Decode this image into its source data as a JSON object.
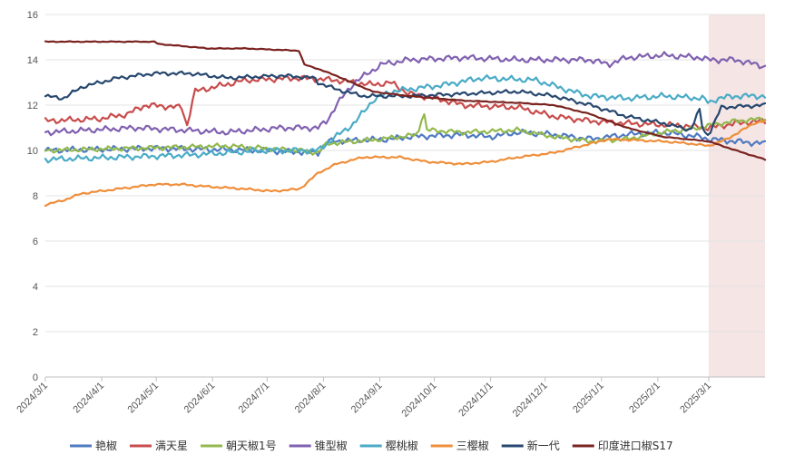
{
  "chart_data": {
    "type": "line",
    "title": "",
    "xlabel": "",
    "ylabel": "",
    "ylim": [
      0,
      16
    ],
    "y_ticks": [
      0,
      2,
      4,
      6,
      8,
      10,
      12,
      14,
      16
    ],
    "x_tick_labels": [
      "2024/3/1",
      "2024/4/1",
      "2024/5/1",
      "2024/6/1",
      "2024/7/1",
      "2024/8/1",
      "2024/9/1",
      "2024/10/1",
      "2024/11/1",
      "2024/12/1",
      "2025/1/1",
      "2025/2/1",
      "2025/3/1"
    ],
    "x_range_days": [
      0,
      396
    ],
    "highlight_region_days": [
      365,
      396
    ],
    "highlight_color": "#f2dcdb",
    "grid": "horizontal",
    "legend_position": "bottom",
    "series": [
      {
        "name": "艳椒",
        "color": "#4f7ac2",
        "noise": 0.15,
        "points": [
          [
            0,
            10.0
          ],
          [
            60,
            10.1
          ],
          [
            120,
            10.0
          ],
          [
            150,
            9.9
          ],
          [
            155,
            10.4
          ],
          [
            190,
            10.5
          ],
          [
            200,
            10.6
          ],
          [
            230,
            10.7
          ],
          [
            245,
            10.6
          ],
          [
            260,
            10.8
          ],
          [
            280,
            10.7
          ],
          [
            300,
            10.5
          ],
          [
            320,
            10.7
          ],
          [
            340,
            10.8
          ],
          [
            360,
            10.6
          ],
          [
            365,
            10.5
          ],
          [
            380,
            10.4
          ],
          [
            396,
            10.3
          ]
        ]
      },
      {
        "name": "满天星",
        "color": "#c94c4c",
        "noise": 0.15,
        "points": [
          [
            0,
            11.3
          ],
          [
            30,
            11.4
          ],
          [
            45,
            11.6
          ],
          [
            55,
            12.0
          ],
          [
            75,
            11.9
          ],
          [
            78,
            11.1
          ],
          [
            82,
            12.6
          ],
          [
            110,
            13.1
          ],
          [
            140,
            13.2
          ],
          [
            160,
            13.1
          ],
          [
            170,
            13.0
          ],
          [
            180,
            12.9
          ],
          [
            190,
            13.0
          ],
          [
            200,
            12.5
          ],
          [
            215,
            12.3
          ],
          [
            230,
            12.0
          ],
          [
            260,
            11.9
          ],
          [
            280,
            11.5
          ],
          [
            300,
            11.3
          ],
          [
            320,
            11.2
          ],
          [
            350,
            11.1
          ],
          [
            365,
            11.0
          ],
          [
            380,
            11.2
          ],
          [
            396,
            11.3
          ]
        ]
      },
      {
        "name": "朝天椒1号",
        "color": "#93b94c",
        "noise": 0.12,
        "points": [
          [
            0,
            10.0
          ],
          [
            50,
            10.1
          ],
          [
            100,
            10.2
          ],
          [
            140,
            10.0
          ],
          [
            150,
            9.9
          ],
          [
            155,
            10.3
          ],
          [
            185,
            10.5
          ],
          [
            205,
            10.7
          ],
          [
            208,
            11.8
          ],
          [
            210,
            10.9
          ],
          [
            230,
            10.8
          ],
          [
            260,
            10.9
          ],
          [
            280,
            10.6
          ],
          [
            300,
            10.4
          ],
          [
            320,
            10.5
          ],
          [
            340,
            10.8
          ],
          [
            360,
            11.0
          ],
          [
            365,
            11.1
          ],
          [
            380,
            11.3
          ],
          [
            396,
            11.4
          ]
        ]
      },
      {
        "name": "锥型椒",
        "color": "#8060b0",
        "noise": 0.15,
        "points": [
          [
            0,
            10.8
          ],
          [
            50,
            11.0
          ],
          [
            100,
            10.8
          ],
          [
            130,
            11.0
          ],
          [
            150,
            11.0
          ],
          [
            155,
            11.3
          ],
          [
            160,
            12.0
          ],
          [
            170,
            13.0
          ],
          [
            185,
            13.8
          ],
          [
            200,
            14.0
          ],
          [
            230,
            14.1
          ],
          [
            260,
            14.0
          ],
          [
            300,
            14.0
          ],
          [
            310,
            13.8
          ],
          [
            320,
            14.1
          ],
          [
            340,
            14.2
          ],
          [
            360,
            14.1
          ],
          [
            365,
            14.0
          ],
          [
            380,
            14.0
          ],
          [
            396,
            13.7
          ]
        ]
      },
      {
        "name": "樱桃椒",
        "color": "#4aabc6",
        "noise": 0.15,
        "points": [
          [
            0,
            9.6
          ],
          [
            40,
            9.7
          ],
          [
            80,
            9.8
          ],
          [
            120,
            10.0
          ],
          [
            150,
            10.0
          ],
          [
            158,
            10.5
          ],
          [
            170,
            11.2
          ],
          [
            180,
            12.2
          ],
          [
            190,
            12.6
          ],
          [
            200,
            12.7
          ],
          [
            220,
            12.9
          ],
          [
            240,
            13.2
          ],
          [
            270,
            13.1
          ],
          [
            290,
            12.6
          ],
          [
            300,
            12.4
          ],
          [
            320,
            12.3
          ],
          [
            340,
            12.4
          ],
          [
            362,
            12.3
          ],
          [
            365,
            12.1
          ],
          [
            370,
            12.3
          ],
          [
            380,
            12.4
          ],
          [
            396,
            12.4
          ]
        ]
      },
      {
        "name": "三樱椒",
        "color": "#ef8e3a",
        "noise": 0.05,
        "points": [
          [
            0,
            7.6
          ],
          [
            10,
            7.8
          ],
          [
            20,
            8.1
          ],
          [
            40,
            8.3
          ],
          [
            60,
            8.5
          ],
          [
            75,
            8.5
          ],
          [
            90,
            8.4
          ],
          [
            110,
            8.3
          ],
          [
            125,
            8.2
          ],
          [
            140,
            8.3
          ],
          [
            150,
            9.0
          ],
          [
            160,
            9.4
          ],
          [
            175,
            9.7
          ],
          [
            195,
            9.7
          ],
          [
            210,
            9.5
          ],
          [
            230,
            9.4
          ],
          [
            245,
            9.5
          ],
          [
            260,
            9.7
          ],
          [
            280,
            9.9
          ],
          [
            300,
            10.3
          ],
          [
            310,
            10.5
          ],
          [
            340,
            10.4
          ],
          [
            355,
            10.3
          ],
          [
            365,
            10.2
          ],
          [
            375,
            10.5
          ],
          [
            390,
            11.2
          ],
          [
            396,
            11.3
          ]
        ]
      },
      {
        "name": "新一代",
        "color": "#27476f",
        "noise": 0.1,
        "points": [
          [
            0,
            12.4
          ],
          [
            10,
            12.3
          ],
          [
            20,
            12.8
          ],
          [
            40,
            13.2
          ],
          [
            60,
            13.4
          ],
          [
            80,
            13.4
          ],
          [
            100,
            13.2
          ],
          [
            130,
            13.3
          ],
          [
            148,
            13.2
          ],
          [
            150,
            13.0
          ],
          [
            160,
            12.7
          ],
          [
            175,
            12.4
          ],
          [
            200,
            12.4
          ],
          [
            230,
            12.5
          ],
          [
            260,
            12.6
          ],
          [
            280,
            12.4
          ],
          [
            300,
            12.0
          ],
          [
            320,
            11.5
          ],
          [
            340,
            11.2
          ],
          [
            355,
            10.9
          ],
          [
            360,
            11.8
          ],
          [
            362,
            10.8
          ],
          [
            365,
            10.7
          ],
          [
            372,
            11.9
          ],
          [
            396,
            12.0
          ]
        ]
      },
      {
        "name": "印度进口椒S17",
        "color": "#7a2320",
        "noise": 0.02,
        "points": [
          [
            0,
            14.8
          ],
          [
            30,
            14.8
          ],
          [
            60,
            14.8
          ],
          [
            62,
            14.7
          ],
          [
            90,
            14.5
          ],
          [
            110,
            14.5
          ],
          [
            140,
            14.4
          ],
          [
            142,
            13.8
          ],
          [
            150,
            13.6
          ],
          [
            160,
            13.3
          ],
          [
            180,
            12.6
          ],
          [
            200,
            12.4
          ],
          [
            230,
            12.2
          ],
          [
            260,
            12.1
          ],
          [
            280,
            12.0
          ],
          [
            300,
            11.6
          ],
          [
            320,
            11.0
          ],
          [
            340,
            10.6
          ],
          [
            365,
            10.4
          ],
          [
            380,
            10.0
          ],
          [
            396,
            9.6
          ]
        ]
      }
    ]
  }
}
